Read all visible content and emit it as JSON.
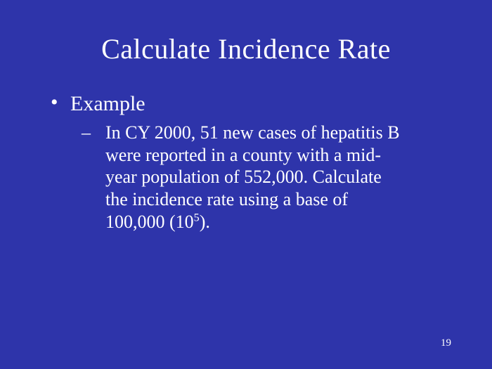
{
  "slide": {
    "background_color": "#2e34aa",
    "text_color": "#ffffff",
    "font_family": "Times New Roman",
    "title": "Calculate Incidence Rate",
    "title_fontsize": 40,
    "bullet_l1_fontsize": 30,
    "bullet_l2_fontsize": 26,
    "bullets": {
      "l1": {
        "label": "Example"
      },
      "l2": {
        "text_before_sup": " In CY 2000, 51 new cases of hepatitis B were reported in a county with a mid-year population of 552,000.  Calculate the incidence rate using a base of 100,000 (10",
        "sup": "5",
        "text_after_sup": ")."
      }
    },
    "page_number": "19"
  }
}
